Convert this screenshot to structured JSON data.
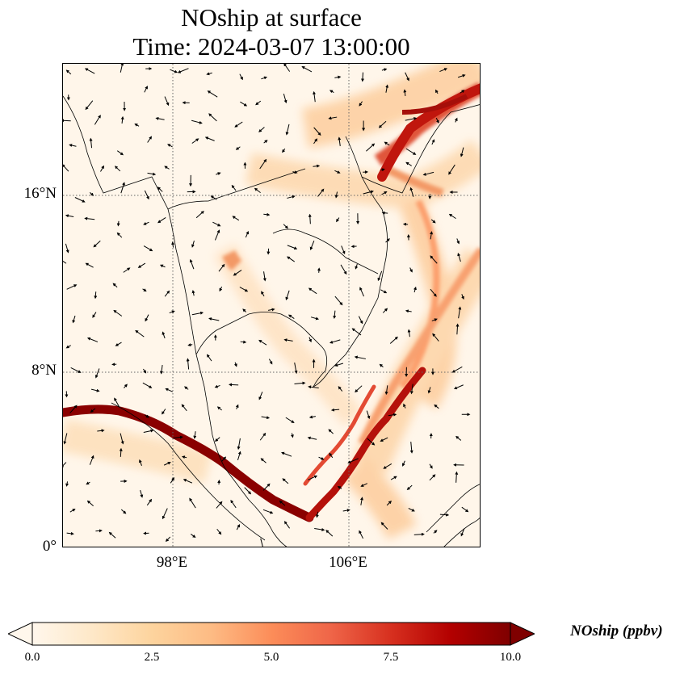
{
  "title": {
    "line1": "NOship at surface",
    "line2": "Time: 2024-03-07 13:00:00"
  },
  "map": {
    "variable": "NOship",
    "level": "surface",
    "lat_range": [
      0,
      20
    ],
    "lon_range": [
      91,
      110
    ],
    "lat_ticks": [
      {
        "value": 16,
        "label": "16°N"
      },
      {
        "value": 8,
        "label": "8°N"
      },
      {
        "value": 0,
        "label": "0°"
      }
    ],
    "lon_ticks": [
      {
        "value": 98,
        "label": "98°E"
      },
      {
        "value": 106,
        "label": "106°E"
      }
    ],
    "gridlines": "dotted",
    "wind_vectors": true,
    "colormap": "OrRd"
  },
  "colorbar": {
    "label": "NOship (ppbv)",
    "min": 0.0,
    "max": 10.0,
    "extend": "both",
    "ticks": [
      "0.0",
      "2.5",
      "5.0",
      "7.5",
      "10.0"
    ],
    "colors": [
      "#fff7ec",
      "#fee8c8",
      "#fdd49e",
      "#fdbb84",
      "#fc8d59",
      "#ef6548",
      "#d7301f",
      "#b30000",
      "#7f0000"
    ]
  }
}
